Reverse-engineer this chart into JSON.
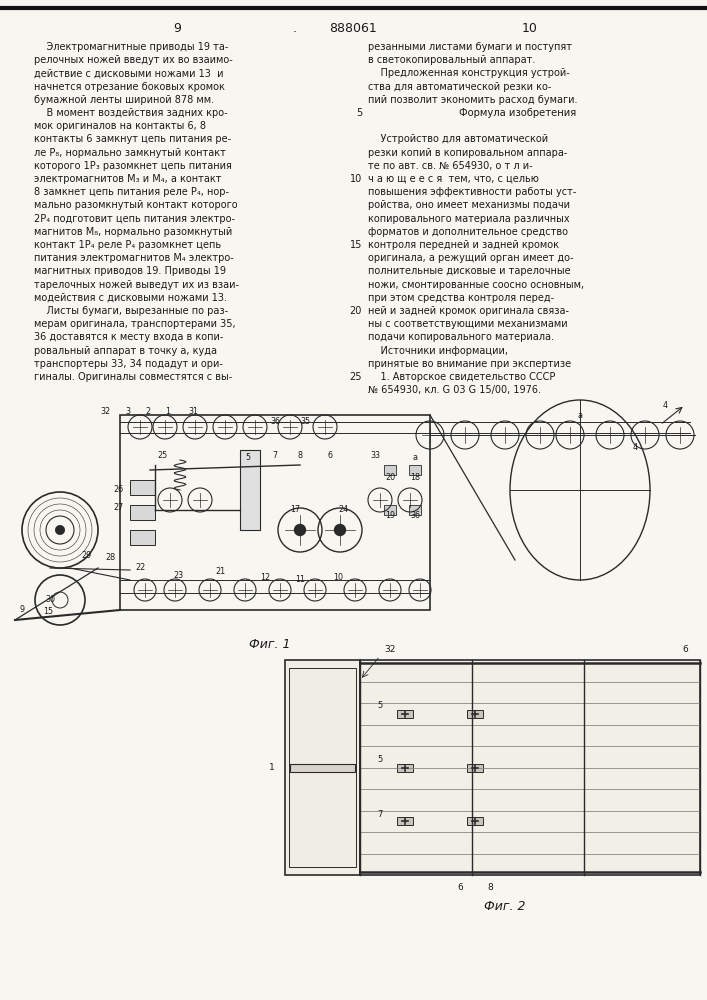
{
  "page_width": 7.07,
  "page_height": 10.0,
  "bg_color": "#f8f6f0",
  "header_text": "888061",
  "page_left": "9",
  "page_right": "10",
  "left_column_text": [
    "    Электромагнитные приводы 19 та-",
    "релочных ножей введут их во взаимо-",
    "действие с дисковыми ножами 13  и",
    "начнется отрезание боковых кромок",
    "бумажной ленты шириной 878 мм.",
    "    В момент воздействия задних кро-",
    "мок оригиналов на контакты 6, 8",
    "контакты 6 замкнут цепь питания ре-",
    "ле P₈, нормально замкнутый контакт",
    "которого 1P₃ разомкнет цепь питания",
    "электромагнитов М₃ и М₄, а контакт",
    "8 замкнет цепь питания реле P₄, нор-",
    "мально разомкнутый контакт которого",
    "2P₄ подготовит цепь питания электро-",
    "магнитов М₈, нормально разомкнутый",
    "контакт 1P₄ реле P₄ разомкнет цепь",
    "питания электромагнитов М₄ электро-",
    "магнитных приводов 19. Приводы 19",
    "тарелочных ножей выведут их из взаи-",
    "модействия с дисковыми ножами 13.",
    "    Листы бумаги, вырезанные по раз-",
    "мерам оригинала, транспортерами 35,",
    "36 доставятся к месту входа в копи-",
    "ровальный аппарат в точку а, куда",
    "транспортеры 33, 34 подадут и ори-",
    "гиналы. Оригиналы совместятся с вы-"
  ],
  "right_column_text": [
    "резанными листами бумаги и поступят",
    "в светокопировальный аппарат.",
    "    Предложенная конструкция устрой-",
    "ства для автоматической резки ко-",
    "пий позволит экономить расход бумаги.",
    "        Формула изобретения",
    "",
    "    Устройство для автоматической",
    "резки копий в копировальном аппара-",
    "те по авт. св. № 654930, о т л и-",
    "ч а ю щ е е с я  тем, что, с целью",
    "повышения эффективности работы уст-",
    "ройства, оно имеет механизмы подачи",
    "копировального материала различных",
    "форматов и дополнительное средство",
    "контроля передней и задней кромок",
    "оригинала, а режущий орган имеет до-",
    "полнительные дисковые и тарелочные",
    "ножи, смонтированные соосно основным,",
    "при этом средства контроля перед-",
    "ней и задней кромок оригинала связа-",
    "ны с соответствующими механизмами",
    "подачи копировального материала.",
    "    Источники информации,",
    "принятые во внимание при экспертизе",
    "    1. Авторское свидетельство СССР",
    "№ 654930, кл. G 03 G 15/00, 1976."
  ],
  "line_numbers_right": [
    {
      "text": "5",
      "line_idx": 5
    },
    {
      "text": "10",
      "line_idx": 10
    },
    {
      "text": "15",
      "line_idx": 15
    },
    {
      "text": "20",
      "line_idx": 20
    },
    {
      "text": "25",
      "line_idx": 25
    }
  ],
  "fig1_caption": "Фиг. 1",
  "fig2_caption": "Фиг. 2",
  "bg_color2": "#ffffff",
  "text_color": "#1a1a1a",
  "draw_color": "#2a2a2a"
}
